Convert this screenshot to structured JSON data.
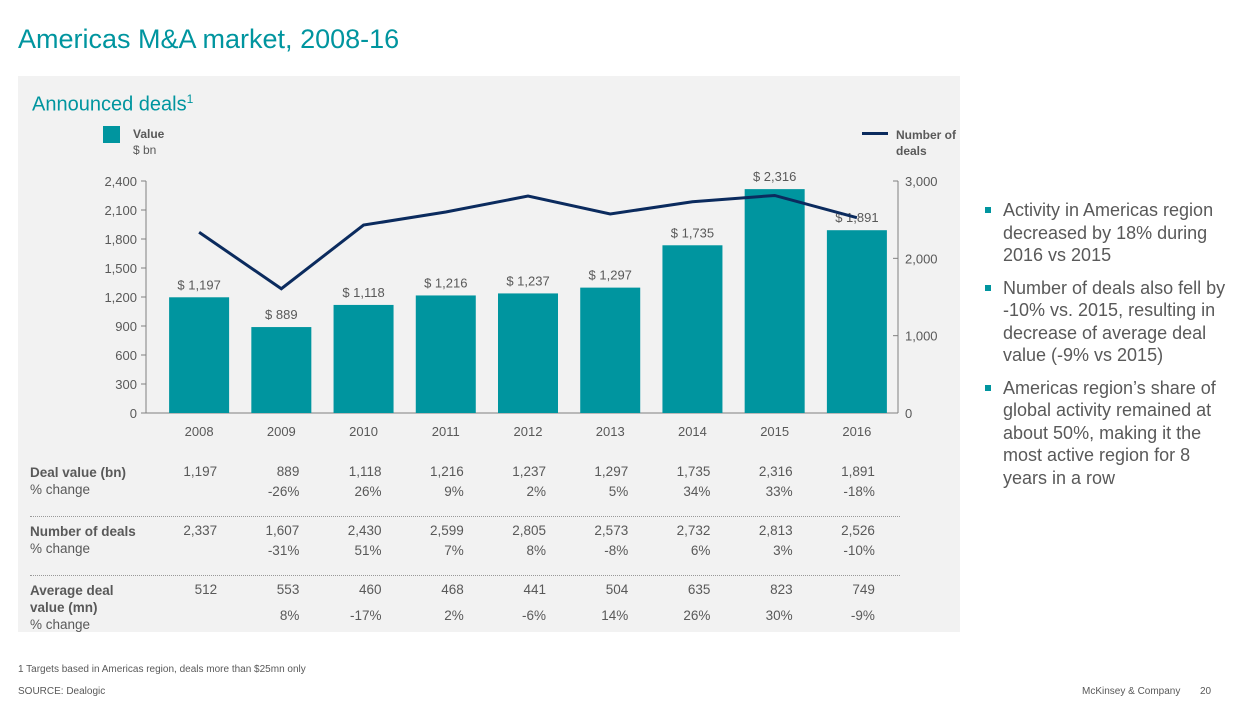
{
  "page": {
    "title": "Americas M&A market, 2008-16",
    "subtitle": "Announced deals",
    "subtitle_footnote_marker": "1",
    "footnote": "1 Targets based in Americas region, deals more than $25mn only",
    "source": "SOURCE: Dealogic",
    "brand": "McKinsey & Company",
    "page_number": "20"
  },
  "legend": {
    "value_label": "Value",
    "value_unit": "$ bn",
    "deals_label": "Number of deals"
  },
  "colors": {
    "accent": "#00959f",
    "line": "#0b2b5e",
    "panel": "#f2f2f2",
    "text": "#595959"
  },
  "chart_data": {
    "type": "bar",
    "title": "Announced deals",
    "categories": [
      "2008",
      "2009",
      "2010",
      "2011",
      "2012",
      "2013",
      "2014",
      "2015",
      "2016"
    ],
    "series": [
      {
        "name": "Value",
        "unit": "$ bn",
        "type": "bar",
        "axis": "left",
        "values": [
          1197,
          889,
          1118,
          1216,
          1237,
          1297,
          1735,
          2316,
          1891
        ],
        "labels": [
          "$ 1,197",
          "$ 889",
          "$ 1,118",
          "$ 1,216",
          "$ 1,237",
          "$ 1,297",
          "$ 1,735",
          "$ 2,316",
          "$ 1,891"
        ]
      },
      {
        "name": "Number of deals",
        "type": "line",
        "axis": "right",
        "values": [
          2337,
          1607,
          2430,
          2599,
          2805,
          2573,
          2732,
          2813,
          2526
        ]
      }
    ],
    "y_left": {
      "ylim": [
        0,
        2400
      ],
      "ticks": [
        0,
        300,
        600,
        900,
        1200,
        1500,
        1800,
        2100,
        2400
      ],
      "tick_labels": [
        "0",
        "300",
        "600",
        "900",
        "1,200",
        "1,500",
        "1,800",
        "2,100",
        "2,400"
      ]
    },
    "y_right": {
      "ylim": [
        0,
        3000
      ],
      "ticks": [
        0,
        1000,
        2000,
        3000
      ],
      "tick_labels": [
        "0",
        "1,000",
        "2,000",
        "3,000"
      ]
    },
    "legend": "top",
    "grid": false
  },
  "table": {
    "rows": [
      {
        "label": "Deal value (bn)",
        "sublabel": "% change",
        "values": [
          "1,197",
          "889",
          "1,118",
          "1,216",
          "1,237",
          "1,297",
          "1,735",
          "2,316",
          "1,891"
        ],
        "changes": [
          "",
          "-26%",
          "26%",
          "9%",
          "2%",
          "5%",
          "34%",
          "33%",
          "-18%"
        ]
      },
      {
        "label": "Number of deals",
        "sublabel": "% change",
        "values": [
          "2,337",
          "1,607",
          "2,430",
          "2,599",
          "2,805",
          "2,573",
          "2,732",
          "2,813",
          "2,526"
        ],
        "changes": [
          "",
          "-31%",
          "51%",
          "7%",
          "8%",
          "-8%",
          "6%",
          "3%",
          "-10%"
        ]
      },
      {
        "label": "Average deal value (mn)",
        "sublabel": "% change",
        "values": [
          "512",
          "553",
          "460",
          "468",
          "441",
          "504",
          "635",
          "823",
          "749"
        ],
        "changes": [
          "",
          "8%",
          "-17%",
          "2%",
          "-6%",
          "14%",
          "26%",
          "30%",
          "-9%"
        ]
      }
    ]
  },
  "bullets": [
    "Activity in Americas region decreased by 18% during 2016 vs 2015",
    "Number of deals also fell by -10% vs. 2015, resulting in decrease of average deal value (-9% vs 2015)",
    "Americas region’s share of global activity remained at about 50%, making it the most active region for 8 years in a row"
  ]
}
